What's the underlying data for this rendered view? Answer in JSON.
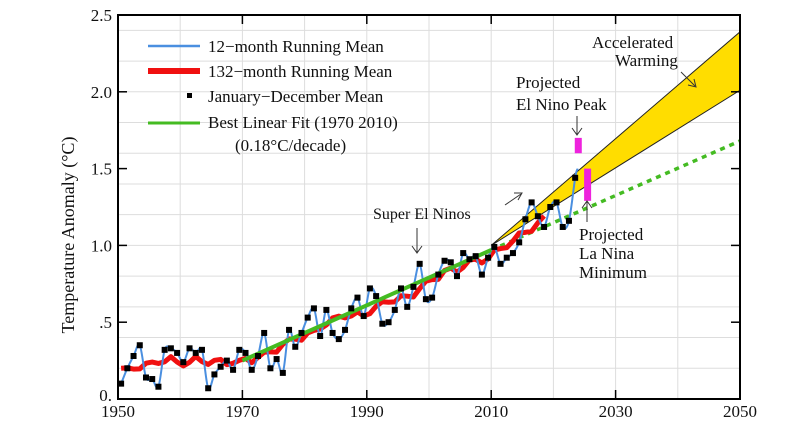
{
  "chart_data": {
    "type": "line",
    "ylabel": "Temperature Anomaly (°C)",
    "xlabel": "",
    "xlim": [
      1950,
      2050
    ],
    "ylim": [
      0,
      2.5
    ],
    "x_ticks": [
      "1950",
      "1970",
      "1990",
      "2010",
      "2030",
      "2050"
    ],
    "y_ticks": [
      {
        "v": 0,
        "label": "0."
      },
      {
        "v": 0.5,
        "label": ".5"
      },
      {
        "v": 1.0,
        "label": "1.0"
      },
      {
        "v": 1.5,
        "label": "1.5"
      },
      {
        "v": 2.0,
        "label": "2.0"
      },
      {
        "v": 2.5,
        "label": "2.5"
      }
    ],
    "grid": true,
    "legend_position": "top-left",
    "legend": [
      {
        "label": "12−month Running Mean",
        "color": "#4a8fe0"
      },
      {
        "label": "132−month Running Mean",
        "color": "#f01010"
      },
      {
        "label": "January−December Mean",
        "color": "#000000"
      },
      {
        "label": "Best Linear Fit (1970  2010)",
        "color": "#44bb22"
      }
    ],
    "legend_note": "(0.18°C/decade)",
    "annual_mean": {
      "years": [
        1950,
        1951,
        1952,
        1953,
        1954,
        1955,
        1956,
        1957,
        1958,
        1959,
        1960,
        1961,
        1962,
        1963,
        1964,
        1965,
        1966,
        1967,
        1968,
        1969,
        1970,
        1971,
        1972,
        1973,
        1974,
        1975,
        1976,
        1977,
        1978,
        1979,
        1980,
        1981,
        1982,
        1983,
        1984,
        1985,
        1986,
        1987,
        1988,
        1989,
        1990,
        1991,
        1992,
        1993,
        1994,
        1995,
        1996,
        1997,
        1998,
        1999,
        2000,
        2001,
        2002,
        2003,
        2004,
        2005,
        2006,
        2007,
        2008,
        2009,
        2010,
        2011,
        2012,
        2013,
        2014,
        2015,
        2016,
        2017,
        2018,
        2019,
        2020,
        2021,
        2022,
        2023
      ],
      "values": [
        0.1,
        0.2,
        0.28,
        0.35,
        0.14,
        0.13,
        0.08,
        0.32,
        0.33,
        0.3,
        0.24,
        0.33,
        0.3,
        0.32,
        0.07,
        0.16,
        0.21,
        0.25,
        0.19,
        0.32,
        0.3,
        0.19,
        0.28,
        0.43,
        0.2,
        0.26,
        0.17,
        0.45,
        0.34,
        0.43,
        0.53,
        0.59,
        0.41,
        0.58,
        0.43,
        0.39,
        0.45,
        0.59,
        0.66,
        0.54,
        0.72,
        0.67,
        0.49,
        0.5,
        0.58,
        0.72,
        0.6,
        0.73,
        0.88,
        0.65,
        0.66,
        0.81,
        0.9,
        0.89,
        0.8,
        0.95,
        0.91,
        0.93,
        0.81,
        0.92,
        0.99,
        0.88,
        0.92,
        0.95,
        1.02,
        1.17,
        1.28,
        1.19,
        1.12,
        1.25,
        1.28,
        1.12,
        1.16,
        1.44
      ]
    },
    "linear_fit": {
      "x": [
        1970,
        2010
      ],
      "y": [
        0.25,
        0.97
      ],
      "extrapolation": {
        "x": [
          2010,
          2050
        ],
        "y": [
          0.97,
          1.68
        ]
      }
    },
    "accelerated_warming_band": {
      "x": [
        2010,
        2050
      ],
      "upper": [
        1.0,
        2.39
      ],
      "lower": [
        1.0,
        2.01
      ],
      "color": "#ffdd00"
    },
    "projected_el_nino_peak": {
      "year": 2024,
      "range": [
        1.6,
        1.7
      ],
      "color": "#ee22dd"
    },
    "projected_la_nina_minimum": {
      "year": 2025.5,
      "range": [
        1.29,
        1.5
      ],
      "color": "#ee22dd"
    },
    "annotations": {
      "super_el_ninos": "Super El Ninos",
      "el_nino_peak": [
        "Projected",
        "El Nino Peak"
      ],
      "la_nina_min": [
        "Projected",
        "La Nina",
        "Minimum"
      ],
      "accelerated": [
        "Accelerated",
        "Warming"
      ]
    }
  }
}
